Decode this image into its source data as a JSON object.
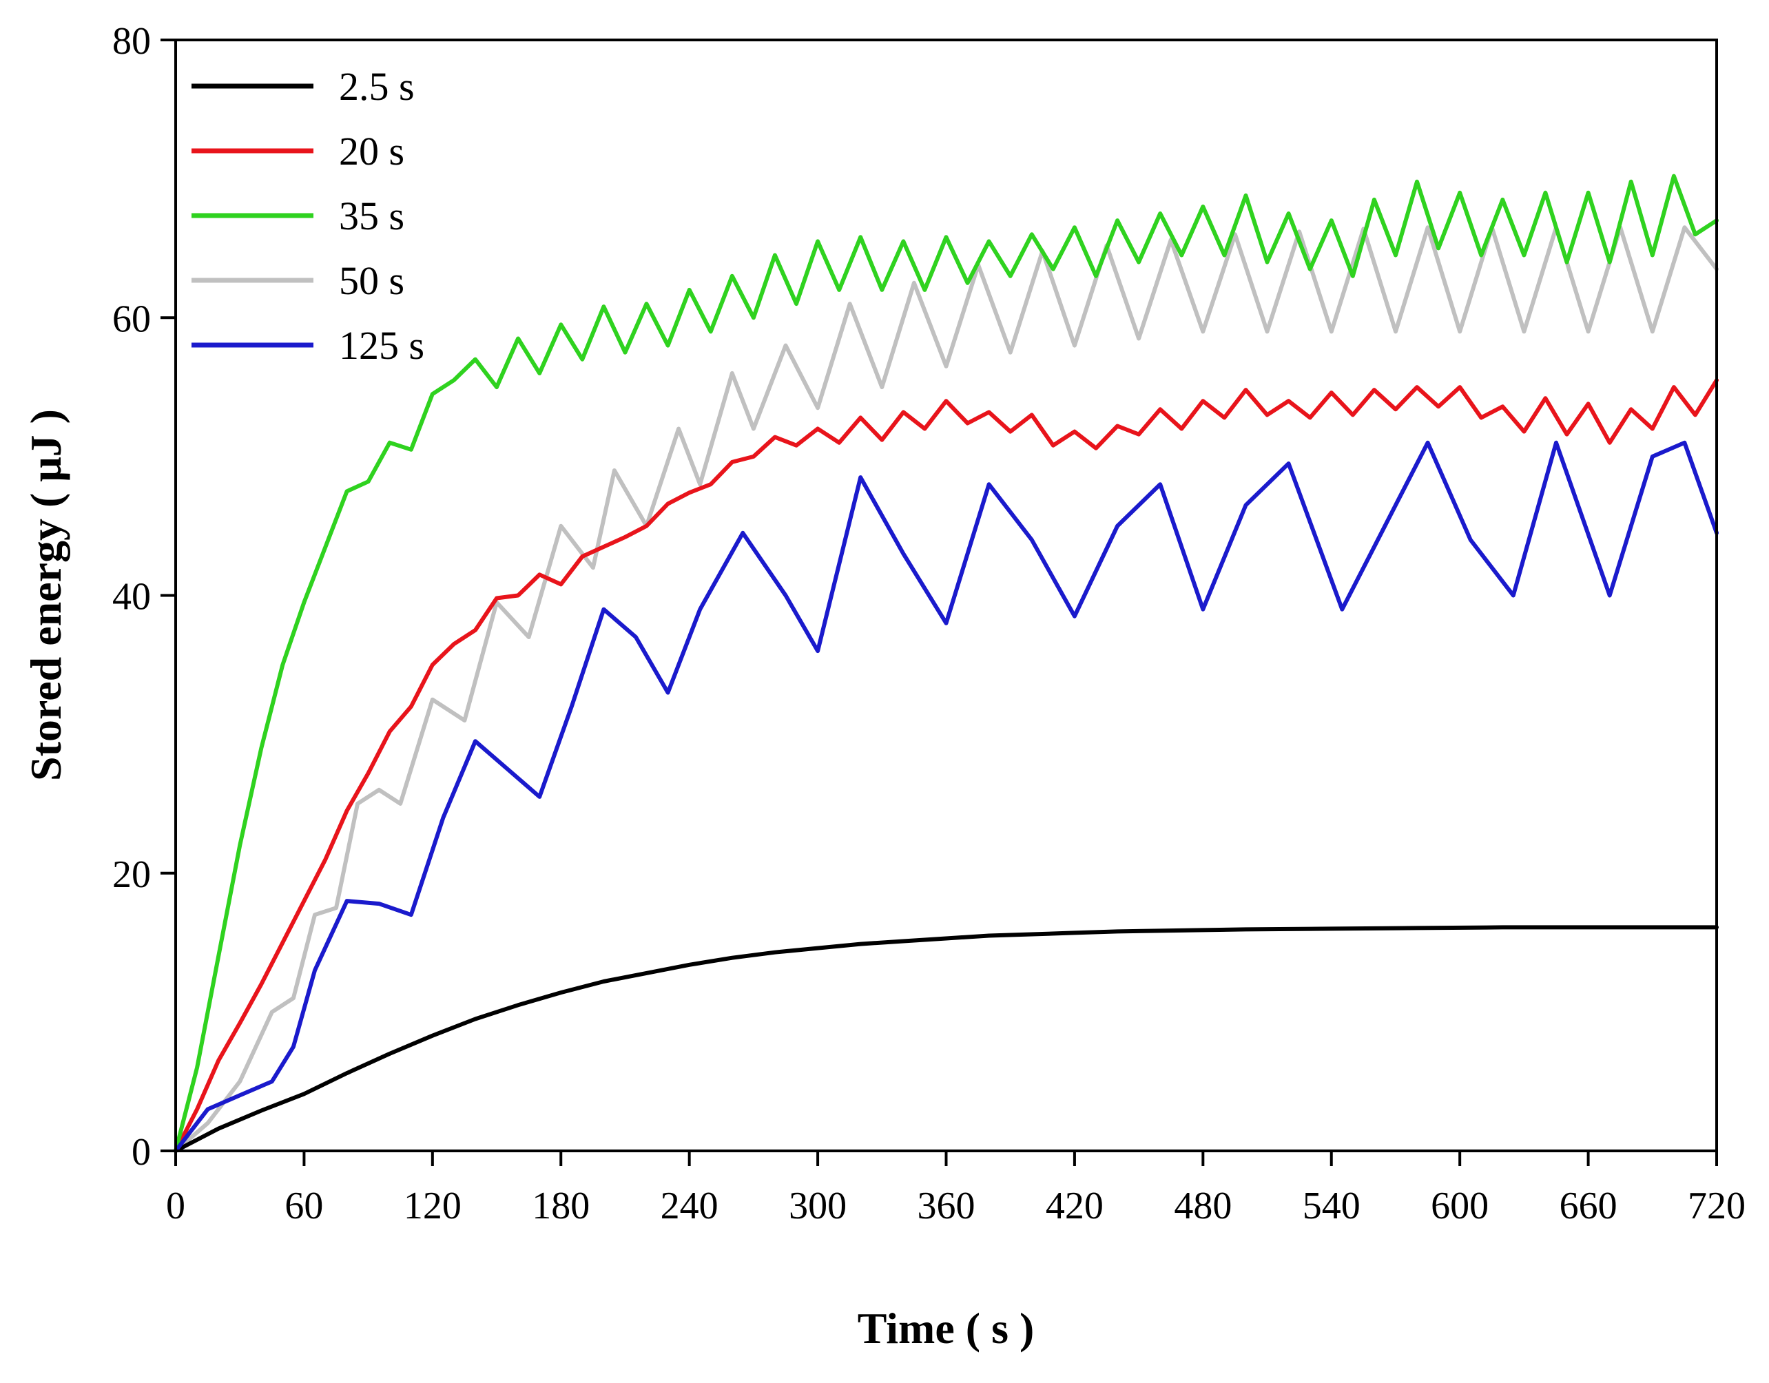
{
  "chart_data": {
    "type": "line",
    "title": "",
    "xlabel": "Time ( s )",
    "ylabel": "Stored energy ( μJ )",
    "xlim": [
      0,
      720
    ],
    "ylim": [
      0,
      80
    ],
    "xticks": [
      0,
      60,
      120,
      180,
      240,
      300,
      360,
      420,
      480,
      540,
      600,
      660,
      720
    ],
    "yticks": [
      0,
      20,
      40,
      60,
      80
    ],
    "grid": false,
    "legend_position": "top-left",
    "series": [
      {
        "name": "2.5 s",
        "color": "#000000",
        "x": [
          0,
          20,
          40,
          60,
          80,
          100,
          120,
          140,
          160,
          180,
          200,
          220,
          240,
          260,
          280,
          300,
          320,
          340,
          360,
          380,
          400,
          420,
          440,
          460,
          480,
          500,
          540,
          580,
          620,
          660,
          700,
          720
        ],
        "y": [
          0,
          1.6,
          2.9,
          4.1,
          5.6,
          7.0,
          8.3,
          9.5,
          10.5,
          11.4,
          12.2,
          12.8,
          13.4,
          13.9,
          14.3,
          14.6,
          14.9,
          15.1,
          15.3,
          15.5,
          15.6,
          15.7,
          15.8,
          15.85,
          15.9,
          15.95,
          16.0,
          16.05,
          16.1,
          16.1,
          16.1,
          16.1
        ]
      },
      {
        "name": "20 s",
        "color": "#e8141b",
        "x": [
          0,
          10,
          20,
          30,
          40,
          50,
          60,
          70,
          80,
          90,
          100,
          110,
          120,
          130,
          140,
          150,
          160,
          170,
          180,
          190,
          200,
          210,
          220,
          230,
          240,
          250,
          260,
          270,
          280,
          290,
          300,
          310,
          320,
          330,
          340,
          350,
          360,
          370,
          380,
          390,
          400,
          410,
          420,
          430,
          440,
          450,
          460,
          470,
          480,
          490,
          500,
          510,
          520,
          530,
          540,
          550,
          560,
          570,
          580,
          590,
          600,
          610,
          620,
          630,
          640,
          650,
          660,
          670,
          680,
          690,
          700,
          710,
          720
        ],
        "y": [
          0,
          3.0,
          6.5,
          9.2,
          12.0,
          15.0,
          18.0,
          21.0,
          24.5,
          27.2,
          30.2,
          32.0,
          35.0,
          36.5,
          37.5,
          39.8,
          40.0,
          41.5,
          40.8,
          42.8,
          43.5,
          44.2,
          45.0,
          46.6,
          47.4,
          48.0,
          49.6,
          50.0,
          51.4,
          50.8,
          52.0,
          51.0,
          52.8,
          51.2,
          53.2,
          52.0,
          54.0,
          52.4,
          53.2,
          51.8,
          53.0,
          50.8,
          51.8,
          50.6,
          52.2,
          51.6,
          53.4,
          52.0,
          54.0,
          52.8,
          54.8,
          53.0,
          54.0,
          52.8,
          54.6,
          53.0,
          54.8,
          53.4,
          55.0,
          53.6,
          55.0,
          52.8,
          53.6,
          51.8,
          54.2,
          51.6,
          53.8,
          51.0,
          53.4,
          52.0,
          55.0,
          53.0,
          55.5
        ]
      },
      {
        "name": "35 s",
        "color": "#2fd21f",
        "x": [
          0,
          10,
          20,
          30,
          40,
          50,
          60,
          70,
          80,
          90,
          100,
          110,
          120,
          130,
          140,
          150,
          160,
          170,
          180,
          190,
          200,
          210,
          220,
          230,
          240,
          250,
          260,
          270,
          280,
          290,
          300,
          310,
          320,
          330,
          340,
          350,
          360,
          370,
          380,
          390,
          400,
          410,
          420,
          430,
          440,
          450,
          460,
          470,
          480,
          490,
          500,
          510,
          520,
          530,
          540,
          550,
          560,
          570,
          580,
          590,
          600,
          610,
          620,
          630,
          640,
          650,
          660,
          670,
          680,
          690,
          700,
          710,
          720
        ],
        "y": [
          0,
          6.0,
          14.0,
          22.0,
          29.0,
          35.0,
          39.5,
          43.5,
          47.5,
          48.2,
          51.0,
          50.5,
          54.5,
          55.5,
          57.0,
          55.0,
          58.5,
          56.0,
          59.5,
          57.0,
          60.8,
          57.5,
          61.0,
          58.0,
          62.0,
          59.0,
          63.0,
          60.0,
          64.5,
          61.0,
          65.5,
          62.0,
          65.8,
          62.0,
          65.5,
          62.0,
          65.8,
          62.5,
          65.5,
          63.0,
          66.0,
          63.5,
          66.5,
          63.0,
          67.0,
          64.0,
          67.5,
          64.5,
          68.0,
          64.5,
          68.8,
          64.0,
          67.5,
          63.5,
          67.0,
          63.0,
          68.5,
          64.5,
          69.8,
          65.0,
          69.0,
          64.5,
          68.5,
          64.5,
          69.0,
          64.0,
          69.0,
          64.0,
          69.8,
          64.5,
          70.2,
          66.0,
          67.0
        ]
      },
      {
        "name": "50 s",
        "color": "#c0c0c0",
        "x": [
          0,
          15,
          30,
          45,
          55,
          65,
          75,
          85,
          95,
          105,
          120,
          135,
          150,
          165,
          180,
          195,
          205,
          220,
          235,
          245,
          260,
          270,
          285,
          300,
          315,
          330,
          345,
          360,
          375,
          390,
          405,
          420,
          435,
          450,
          465,
          480,
          495,
          510,
          525,
          540,
          555,
          570,
          585,
          600,
          615,
          630,
          645,
          660,
          675,
          690,
          705,
          720
        ],
        "y": [
          0,
          2.0,
          5.0,
          10.0,
          11.0,
          17.0,
          17.5,
          25.0,
          26.0,
          25.0,
          32.5,
          31.0,
          39.5,
          37.0,
          45.0,
          42.0,
          49.0,
          45.0,
          52.0,
          48.0,
          56.0,
          52.0,
          58.0,
          53.5,
          61.0,
          55.0,
          62.5,
          56.5,
          63.8,
          57.5,
          64.8,
          58.0,
          65.2,
          58.5,
          65.6,
          59.0,
          66.0,
          59.0,
          66.2,
          59.0,
          66.4,
          59.0,
          66.5,
          59.0,
          66.5,
          59.0,
          66.5,
          59.0,
          66.5,
          59.0,
          66.5,
          63.5
        ]
      },
      {
        "name": "125 s",
        "color": "#1a1acc",
        "x": [
          0,
          15,
          30,
          45,
          55,
          65,
          80,
          95,
          110,
          125,
          140,
          155,
          170,
          185,
          200,
          215,
          230,
          245,
          265,
          285,
          300,
          320,
          340,
          360,
          380,
          400,
          420,
          440,
          460,
          480,
          500,
          520,
          545,
          565,
          585,
          605,
          625,
          645,
          670,
          690,
          705,
          720
        ],
        "y": [
          0,
          3.0,
          4.0,
          5.0,
          7.5,
          13.0,
          18.0,
          17.8,
          17.0,
          24.0,
          29.5,
          27.5,
          25.5,
          32.0,
          39.0,
          37.0,
          33.0,
          39.0,
          44.5,
          40.0,
          36.0,
          48.5,
          43.0,
          38.0,
          48.0,
          44.0,
          38.5,
          45.0,
          48.0,
          39.0,
          46.5,
          49.5,
          39.0,
          45.0,
          51.0,
          44.0,
          40.0,
          51.0,
          40.0,
          50.0,
          51.0,
          44.5
        ]
      }
    ]
  }
}
